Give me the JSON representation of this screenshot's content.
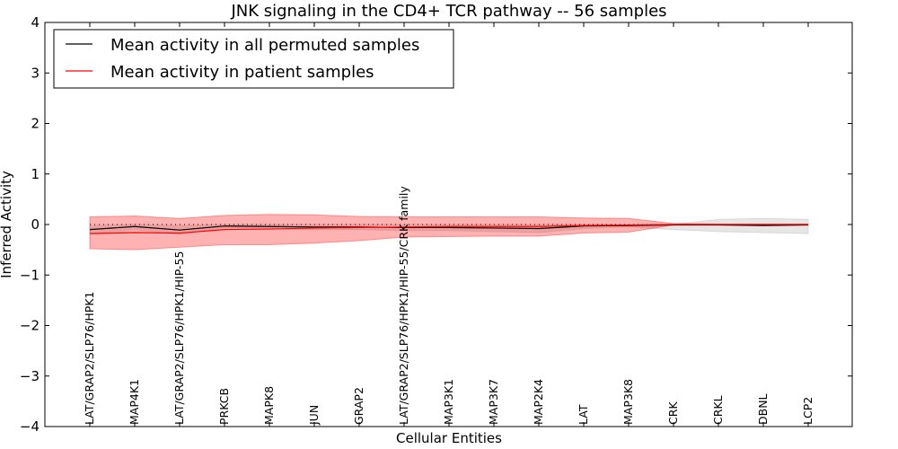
{
  "chart_data": {
    "type": "line",
    "title": "JNK signaling in the CD4+ TCR pathway -- 56 samples",
    "xlabel": "Cellular Entities",
    "ylabel": "Inferred Activity",
    "ylim": [
      -4,
      4
    ],
    "yticks": [
      -4,
      -3,
      -2,
      -1,
      0,
      1,
      2,
      3,
      4
    ],
    "ytick_labels": [
      "−4",
      "−3",
      "−2",
      "−1",
      "0",
      "1",
      "2",
      "3",
      "4"
    ],
    "grid": false,
    "reference_line": {
      "y": 0,
      "style": "dotted"
    },
    "legend": {
      "placement": "top-left",
      "entries": [
        {
          "label": "Mean activity in all permuted samples",
          "color": "#000000"
        },
        {
          "label": "Mean activity in patient samples",
          "color": "#ff0000"
        }
      ]
    },
    "categories": [
      "LAT/GRAP2/SLP76/HPK1",
      "MAP4K1",
      "LAT/GRAP2/SLP76/HPK1/HIP-55",
      "PRKCB",
      "MAPK8",
      "JUN",
      "GRAP2",
      "LAT/GRAP2/SLP76/HPK1/HIP-55/CRK family",
      "MAP3K1",
      "MAP3K7",
      "MAP2K4",
      "LAT",
      "MAP3K8",
      "CRK",
      "CRKL",
      "DBNL",
      "LCP2"
    ],
    "series": [
      {
        "name": "Mean activity in all permuted samples",
        "color": "#000000",
        "values": [
          -0.1,
          -0.04,
          -0.11,
          -0.03,
          -0.04,
          -0.05,
          -0.05,
          -0.06,
          -0.06,
          -0.07,
          -0.08,
          -0.03,
          -0.02,
          -0.01,
          -0.01,
          -0.02,
          -0.01
        ],
        "band_upper": [
          -0.02,
          0.0,
          -0.02,
          0.0,
          0.0,
          0.0,
          0.0,
          0.0,
          0.0,
          0.0,
          0.0,
          0.0,
          0.0,
          0.0,
          0.1,
          0.12,
          0.1
        ],
        "band_lower": [
          -0.18,
          -0.1,
          -0.2,
          -0.06,
          -0.08,
          -0.1,
          -0.1,
          -0.12,
          -0.12,
          -0.14,
          -0.16,
          -0.08,
          -0.05,
          -0.1,
          -0.14,
          -0.16,
          -0.18
        ],
        "band_color": "#c8c8c8"
      },
      {
        "name": "Mean activity in patient samples",
        "color": "#ff0000",
        "values": [
          -0.18,
          -0.16,
          -0.17,
          -0.1,
          -0.09,
          -0.07,
          -0.06,
          -0.05,
          -0.04,
          -0.04,
          -0.04,
          -0.02,
          -0.01,
          0.0,
          0.0,
          0.0,
          0.0
        ],
        "band_upper": [
          0.15,
          0.17,
          0.12,
          0.18,
          0.2,
          0.19,
          0.16,
          0.15,
          0.15,
          0.15,
          0.15,
          0.13,
          0.12,
          0.02,
          0.01,
          0.01,
          0.01
        ],
        "band_lower": [
          -0.48,
          -0.5,
          -0.45,
          -0.4,
          -0.4,
          -0.37,
          -0.32,
          -0.25,
          -0.24,
          -0.23,
          -0.23,
          -0.17,
          -0.15,
          -0.01,
          -0.01,
          -0.01,
          -0.01
        ],
        "band_color": "#ff0000"
      }
    ]
  }
}
